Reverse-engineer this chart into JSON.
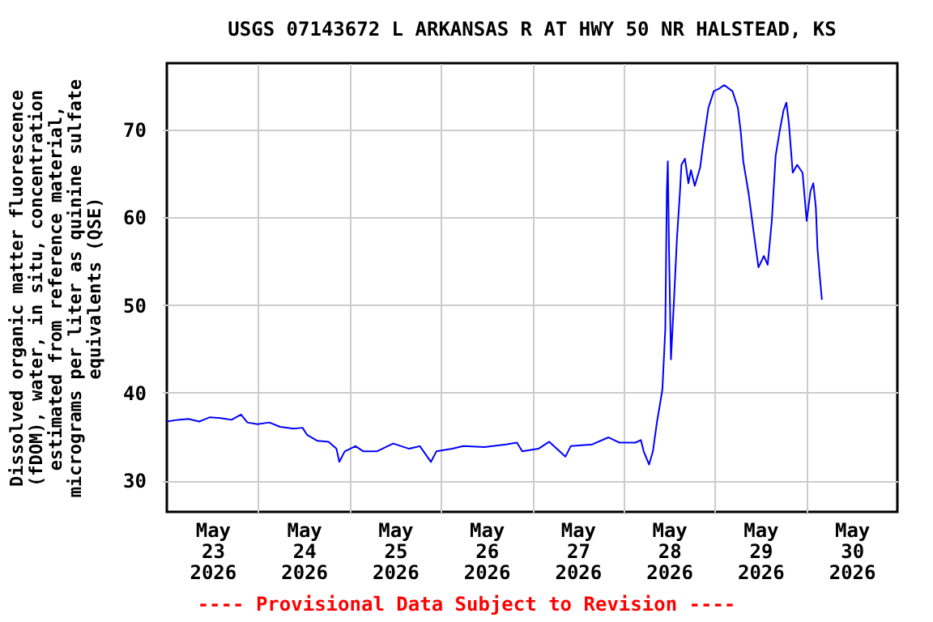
{
  "chart_data": {
    "type": "line",
    "title": "USGS 07143672 L ARKANSAS R AT HWY 50 NR HALSTEAD, KS",
    "ylabel": "Dissolved organic matter fluorescence\n(fDOM), water, in situ, concentration\nestimated from reference material,\nmicrograms per liter as quinine sulfate\nequivalents (QSE)",
    "annotations": [
      "---- Provisional Data Subject to Revision ----"
    ],
    "x": [
      "2026-05-23T00:00",
      "2026-05-23T02:50",
      "2026-05-23T05:40",
      "2026-05-23T08:30",
      "2026-05-23T11:20",
      "2026-05-23T14:10",
      "2026-05-23T17:00",
      "2026-05-23T19:30",
      "2026-05-23T21:10",
      "2026-05-23T23:50",
      "2026-05-24T02:55",
      "2026-05-24T05:45",
      "2026-05-24T09:15",
      "2026-05-24T11:40",
      "2026-05-24T12:50",
      "2026-05-24T15:35",
      "2026-05-24T18:30",
      "2026-05-24T20:35",
      "2026-05-24T21:20",
      "2026-05-24T22:45",
      "2026-05-25T01:35",
      "2026-05-25T03:40",
      "2026-05-25T07:10",
      "2026-05-25T11:30",
      "2026-05-25T15:40",
      "2026-05-25T18:30",
      "2026-05-25T21:25",
      "2026-05-25T22:50",
      "2026-05-26T03:00",
      "2026-05-26T05:55",
      "2026-05-26T11:30",
      "2026-05-26T17:10",
      "2026-05-26T20:00",
      "2026-05-26T21:25",
      "2026-05-27T01:40",
      "2026-05-27T04:30",
      "2026-05-27T08:45",
      "2026-05-27T10:10",
      "2026-05-27T15:50",
      "2026-05-27T20:05",
      "2026-05-27T22:55",
      "2026-05-28T03:10",
      "2026-05-28T04:35",
      "2026-05-28T05:20",
      "2026-05-28T06:45",
      "2026-05-28T07:45",
      "2026-05-28T08:50",
      "2026-05-28T09:35",
      "2026-05-28T10:15",
      "2026-05-28T11:00",
      "2026-05-28T11:25",
      "2026-05-28T11:40",
      "2026-05-28T12:00",
      "2026-05-28T12:30",
      "2026-05-28T13:20",
      "2026-05-28T14:05",
      "2026-05-28T14:50",
      "2026-05-28T15:15",
      "2026-05-28T16:10",
      "2026-05-28T17:05",
      "2026-05-28T17:45",
      "2026-05-28T18:45",
      "2026-05-28T20:10",
      "2026-05-28T20:55",
      "2026-05-28T22:20",
      "2026-05-28T23:45",
      "2026-05-29T01:10",
      "2026-05-29T02:30",
      "2026-05-29T04:40",
      "2026-05-29T06:05",
      "2026-05-29T06:50",
      "2026-05-29T07:30",
      "2026-05-29T08:55",
      "2026-05-29T10:20",
      "2026-05-29T11:30",
      "2026-05-29T12:55",
      "2026-05-29T13:55",
      "2026-05-29T15:00",
      "2026-05-29T16:00",
      "2026-05-29T17:10",
      "2026-05-29T18:05",
      "2026-05-29T18:50",
      "2026-05-29T19:30",
      "2026-05-29T20:30",
      "2026-05-29T21:40",
      "2026-05-29T23:05",
      "2026-05-30T00:10",
      "2026-05-30T01:10",
      "2026-05-30T01:55",
      "2026-05-30T02:35",
      "2026-05-30T03:00",
      "2026-05-30T03:35",
      "2026-05-30T04:10"
    ],
    "series": [
      {
        "color": "#0000ff",
        "values": [
          36.7,
          36.9,
          37.0,
          36.7,
          37.2,
          37.1,
          36.9,
          37.5,
          36.6,
          36.4,
          36.6,
          36.1,
          35.9,
          36.0,
          35.2,
          34.5,
          34.4,
          33.6,
          32.1,
          33.3,
          33.9,
          33.3,
          33.3,
          34.2,
          33.6,
          33.9,
          32.1,
          33.3,
          33.6,
          33.9,
          33.8,
          34.1,
          34.3,
          33.3,
          33.6,
          34.4,
          32.7,
          33.9,
          34.1,
          34.9,
          34.3,
          34.3,
          34.6,
          33.3,
          31.8,
          33.3,
          36.7,
          38.6,
          40.4,
          47.2,
          63.0,
          66.4,
          55.9,
          43.8,
          50.9,
          57.7,
          62.7,
          66.0,
          66.7,
          63.9,
          65.4,
          63.6,
          65.7,
          68.2,
          72.5,
          74.4,
          74.7,
          75.1,
          74.4,
          72.5,
          69.8,
          66.4,
          62.7,
          58.0,
          54.3,
          55.6,
          54.6,
          59.6,
          67.0,
          70.1,
          72.2,
          73.1,
          70.7,
          65.1,
          66.0,
          65.1,
          59.6,
          63.0,
          63.9,
          61.1,
          56.5,
          53.4,
          50.6
        ]
      }
    ],
    "xlim": [
      "2026-05-23T00:00",
      "2026-05-31T00:00"
    ],
    "xticks": [
      {
        "value": "2026-05-23T12:00",
        "label": "May 23 2026"
      },
      {
        "value": "2026-05-24T00:00",
        "label": null
      },
      {
        "value": "2026-05-24T12:00",
        "label": "May 24 2026"
      },
      {
        "value": "2026-05-25T00:00",
        "label": null
      },
      {
        "value": "2026-05-25T12:00",
        "label": "May 25 2026"
      },
      {
        "value": "2026-05-26T00:00",
        "label": null
      },
      {
        "value": "2026-05-26T12:00",
        "label": "May 26 2026"
      },
      {
        "value": "2026-05-27T00:00",
        "label": null
      },
      {
        "value": "2026-05-27T12:00",
        "label": "May 27 2026"
      },
      {
        "value": "2026-05-28T00:00",
        "label": null
      },
      {
        "value": "2026-05-28T12:00",
        "label": "May 28 2026"
      },
      {
        "value": "2026-05-29T00:00",
        "label": null
      },
      {
        "value": "2026-05-29T12:00",
        "label": "May 29 2026"
      },
      {
        "value": "2026-05-30T00:00",
        "label": null
      },
      {
        "value": "2026-05-30T12:00",
        "label": "May 30 2026"
      }
    ],
    "ylim": [
      26.4,
      77.6
    ],
    "yticks": [
      30,
      40,
      50,
      60,
      70
    ],
    "grid": true
  }
}
